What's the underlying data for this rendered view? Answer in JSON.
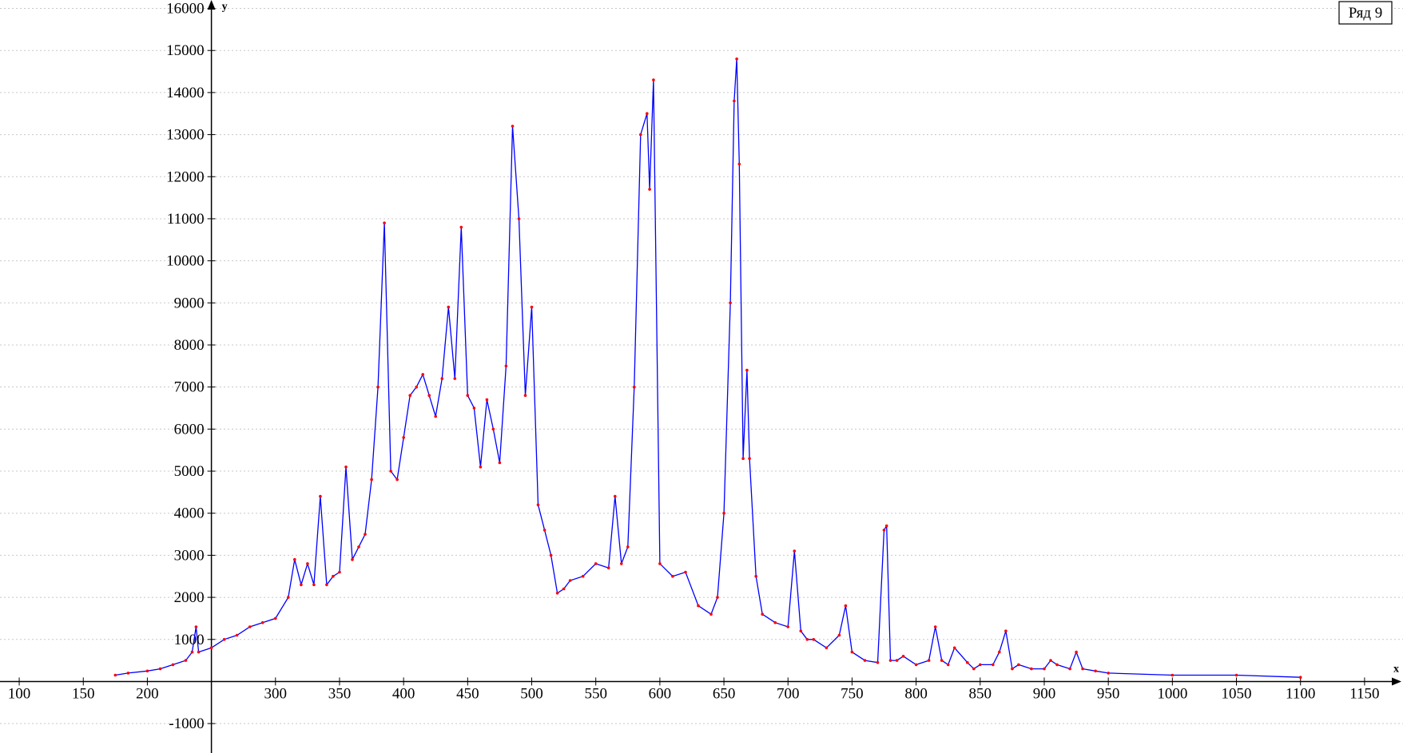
{
  "chart_data": {
    "type": "line",
    "title": "",
    "xlabel": "x",
    "ylabel": "y",
    "xlim": [
      85,
      1180
    ],
    "ylim": [
      -1700,
      16200
    ],
    "x_ticks": [
      100,
      150,
      200,
      300,
      350,
      400,
      450,
      500,
      550,
      600,
      650,
      700,
      750,
      800,
      850,
      900,
      950,
      1000,
      1050,
      1100,
      1150
    ],
    "x_tick_labels": [
      "100",
      "150",
      "200",
      "300",
      "350",
      "400",
      "450",
      "500",
      "550",
      "600",
      "650",
      "700",
      "750",
      "800",
      "850",
      "900",
      "950",
      "1000",
      "1050",
      "1100",
      "1150"
    ],
    "y_ticks": [
      -1000,
      1000,
      2000,
      3000,
      4000,
      5000,
      6000,
      7000,
      8000,
      9000,
      10000,
      11000,
      12000,
      13000,
      14000,
      15000,
      16000
    ],
    "y_tick_labels": [
      "-1000",
      "1000",
      "2000",
      "3000",
      "4000",
      "5000",
      "6000",
      "7000",
      "8000",
      "9000",
      "10000",
      "11000",
      "12000",
      "13000",
      "14000",
      "15000",
      "16000"
    ],
    "grid": true,
    "legend": {
      "position": "top-right"
    },
    "colors": {
      "line": "#0000ff",
      "markers": "#ff0000",
      "grid": "#c8c8c8",
      "axis": "#000000"
    },
    "series": [
      {
        "name": "Ряд 9",
        "x": [
          175,
          185,
          200,
          210,
          220,
          230,
          235,
          238,
          240,
          250,
          260,
          270,
          280,
          290,
          300,
          310,
          315,
          320,
          325,
          330,
          335,
          340,
          345,
          350,
          355,
          360,
          365,
          370,
          375,
          380,
          385,
          390,
          395,
          400,
          405,
          410,
          415,
          420,
          425,
          430,
          435,
          440,
          445,
          450,
          455,
          460,
          465,
          470,
          475,
          480,
          485,
          490,
          495,
          500,
          505,
          510,
          515,
          520,
          525,
          530,
          540,
          550,
          560,
          565,
          570,
          575,
          580,
          585,
          590,
          592,
          595,
          600,
          610,
          620,
          630,
          640,
          645,
          650,
          655,
          658,
          660,
          662,
          665,
          668,
          670,
          675,
          680,
          690,
          700,
          705,
          710,
          715,
          720,
          730,
          740,
          745,
          750,
          760,
          770,
          775,
          777,
          780,
          785,
          790,
          800,
          810,
          815,
          820,
          825,
          830,
          840,
          845,
          850,
          860,
          865,
          870,
          875,
          880,
          890,
          900,
          905,
          910,
          920,
          925,
          930,
          940,
          950,
          1000,
          1050,
          1100
        ],
        "y": [
          150,
          200,
          250,
          300,
          400,
          500,
          700,
          1300,
          700,
          800,
          1000,
          1100,
          1300,
          1400,
          1500,
          2000,
          2900,
          2300,
          2800,
          2300,
          4400,
          2300,
          2500,
          2600,
          5100,
          2900,
          3200,
          3500,
          4800,
          7000,
          10900,
          5000,
          4800,
          5800,
          6800,
          7000,
          7300,
          6800,
          6300,
          7200,
          8900,
          7200,
          10800,
          6800,
          6500,
          5100,
          6700,
          6000,
          5200,
          7500,
          13200,
          11000,
          6800,
          8900,
          4200,
          3600,
          3000,
          2100,
          2200,
          2400,
          2500,
          2800,
          2700,
          4400,
          2800,
          3200,
          7000,
          13000,
          13500,
          11700,
          14300,
          2800,
          2500,
          2600,
          1800,
          1600,
          2000,
          4000,
          9000,
          13800,
          14800,
          12300,
          5300,
          7400,
          5300,
          2500,
          1600,
          1400,
          1300,
          3100,
          1200,
          1000,
          1000,
          800,
          1100,
          1800,
          700,
          500,
          450,
          3600,
          3700,
          500,
          500,
          600,
          400,
          500,
          1300,
          500,
          400,
          800,
          450,
          300,
          400,
          400,
          700,
          1200,
          300,
          400,
          300,
          300,
          500,
          400,
          300,
          700,
          300,
          250,
          200,
          150,
          150,
          100
        ]
      }
    ]
  }
}
